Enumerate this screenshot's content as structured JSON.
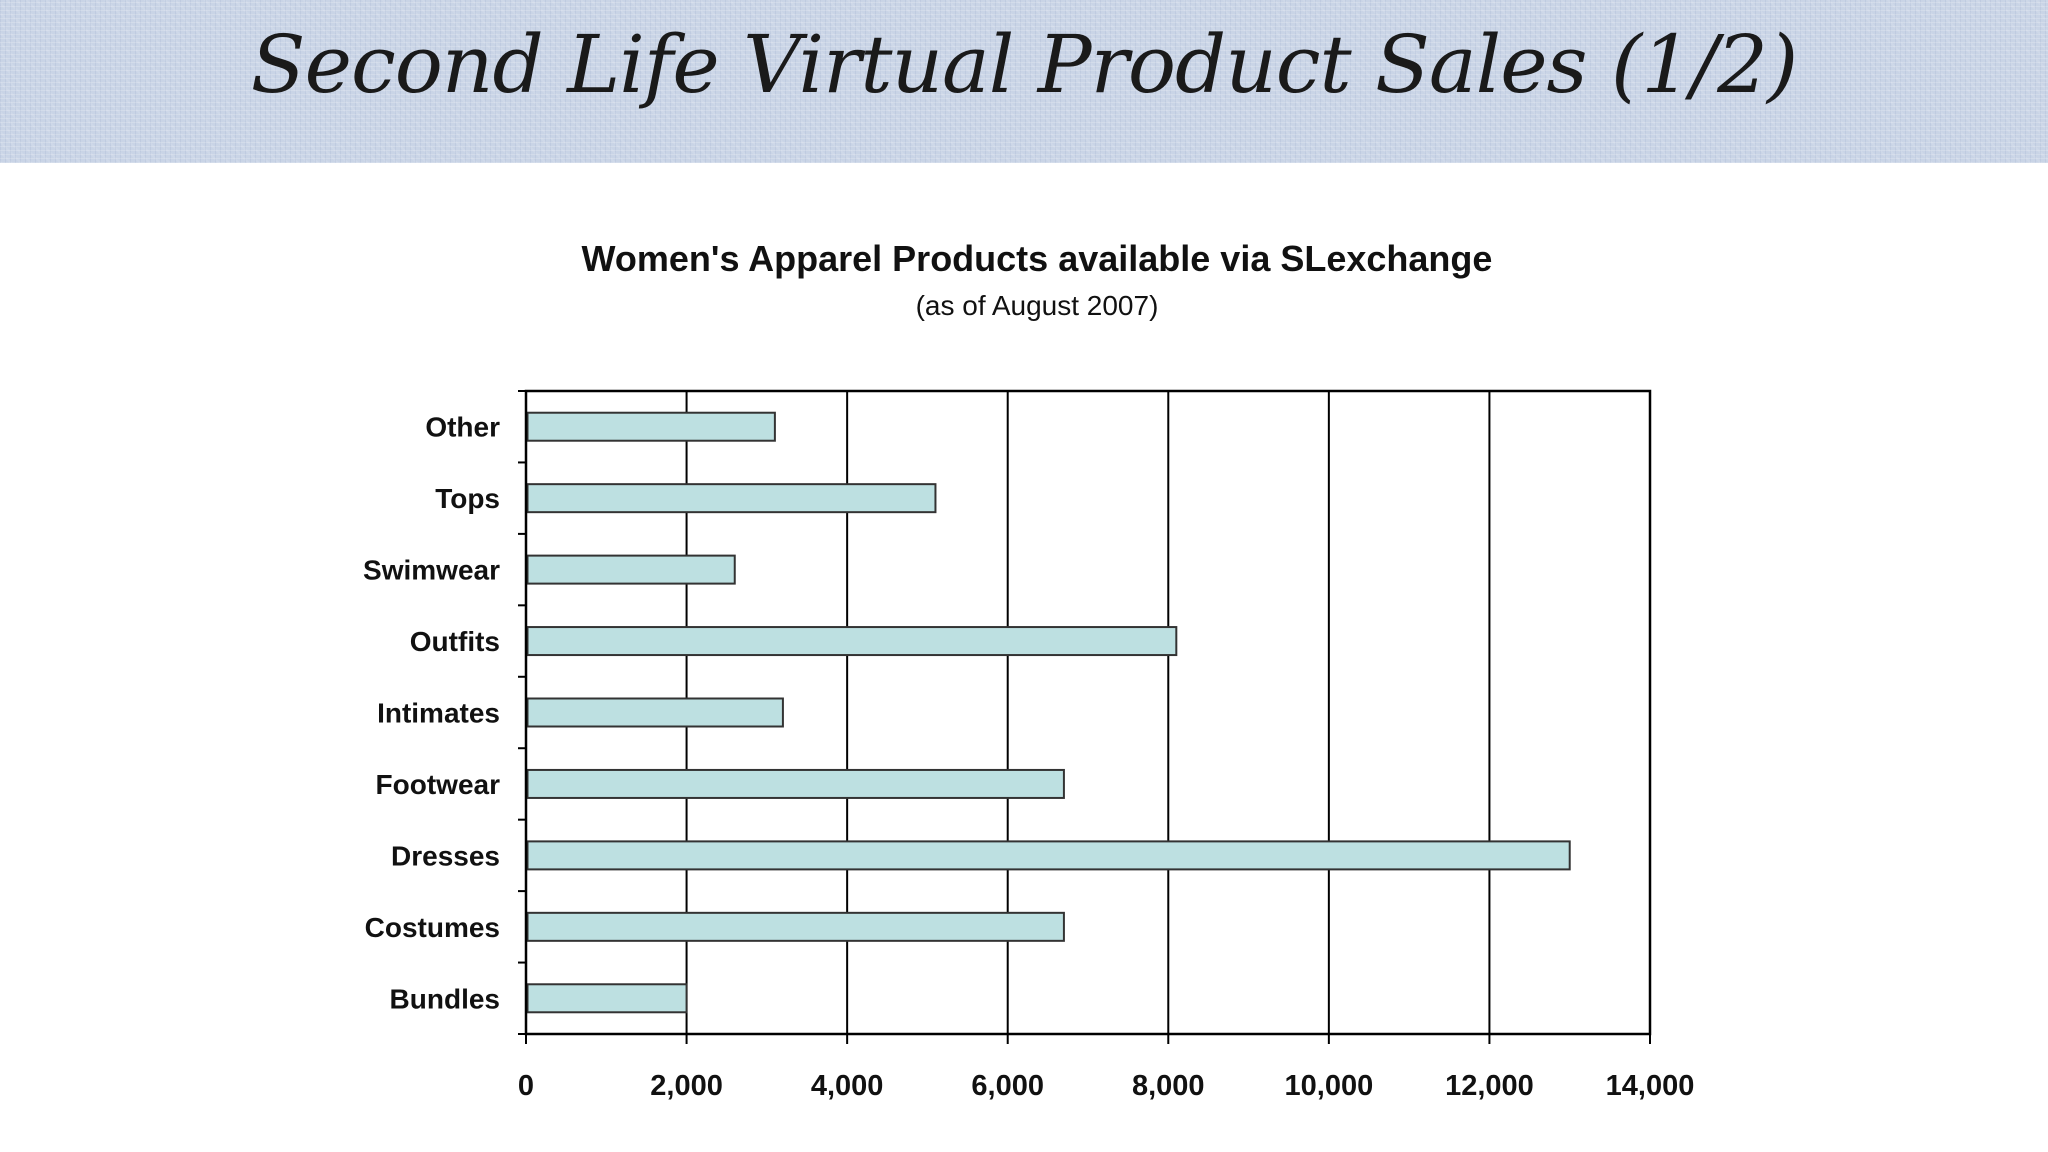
{
  "slide": {
    "title": "Second Life Virtual Product Sales (1/2)"
  },
  "colors": {
    "bar_fill": "#bde0e1",
    "bar_stroke": "#333333",
    "grid": "#000000",
    "title_band": "#c9d4e6"
  },
  "chart_data": {
    "type": "bar",
    "orientation": "horizontal",
    "title": "Women's Apparel Products available via SLexchange",
    "subtitle": "(as of August 2007)",
    "categories": [
      "Other",
      "Tops",
      "Swimwear",
      "Outfits",
      "Intimates",
      "Footwear",
      "Dresses",
      "Costumes",
      "Bundles"
    ],
    "values": [
      3100,
      5100,
      2600,
      8100,
      3200,
      6700,
      13000,
      6700,
      2000
    ],
    "xlim": [
      0,
      14000
    ],
    "xticks": [
      0,
      2000,
      4000,
      6000,
      8000,
      10000,
      12000,
      14000
    ],
    "xtick_labels": [
      "0",
      "2,000",
      "4,000",
      "6,000",
      "8,000",
      "10,000",
      "12,000",
      "14,000"
    ],
    "xlabel": "",
    "ylabel": "",
    "grid": "vertical",
    "legend": "none"
  }
}
